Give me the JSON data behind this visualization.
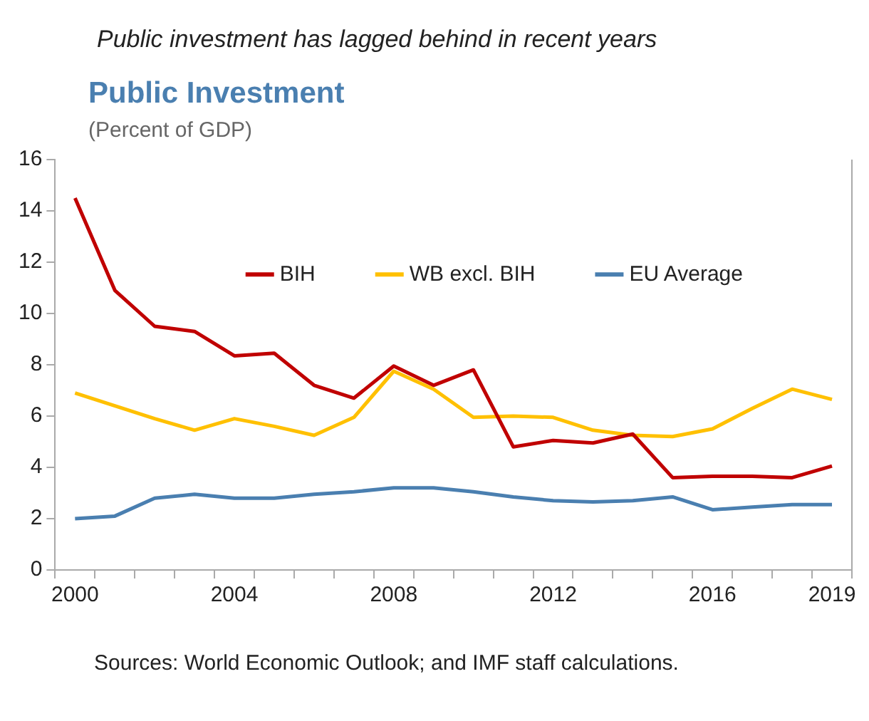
{
  "chart_data": {
    "type": "line",
    "title": "Public Investment",
    "subtitle": "Public investment has lagged behind in recent years",
    "ylabel": "(Percent of GDP)",
    "categories": [
      "2000",
      null,
      null,
      null,
      "2004",
      null,
      null,
      null,
      "2008",
      null,
      null,
      null,
      "2012",
      null,
      null,
      null,
      "2016",
      null,
      null,
      "2019"
    ],
    "series": [
      {
        "name": "BIH",
        "color": "#c00000",
        "values": [
          14.5,
          10.9,
          9.5,
          9.3,
          8.35,
          8.45,
          7.2,
          6.7,
          7.95,
          7.2,
          7.8,
          4.8,
          5.05,
          4.95,
          5.3,
          3.6,
          3.65,
          3.65,
          3.6,
          4.05
        ]
      },
      {
        "name": "WB excl. BIH",
        "color": "#ffc000",
        "values": [
          6.9,
          6.4,
          5.9,
          5.45,
          5.9,
          5.6,
          5.25,
          5.95,
          7.75,
          7.05,
          5.95,
          6.0,
          5.95,
          5.45,
          5.25,
          5.2,
          5.5,
          6.3,
          7.05,
          6.65
        ]
      },
      {
        "name": "EU Average",
        "color": "#4a7fb0",
        "values": [
          2.0,
          2.1,
          2.8,
          2.95,
          2.8,
          2.8,
          2.95,
          3.05,
          3.2,
          3.2,
          3.05,
          2.85,
          2.7,
          2.65,
          2.7,
          2.85,
          2.35,
          2.45,
          2.55,
          2.55
        ]
      }
    ],
    "ylim": [
      0,
      16
    ],
    "yticks": [
      0,
      2,
      4,
      6,
      8,
      10,
      12,
      14,
      16
    ],
    "grid": false,
    "legend": "top",
    "marker": "none",
    "line_style": "solid",
    "annotations": [
      "Sources: World Economic Outlook; and IMF staff calculations."
    ]
  }
}
